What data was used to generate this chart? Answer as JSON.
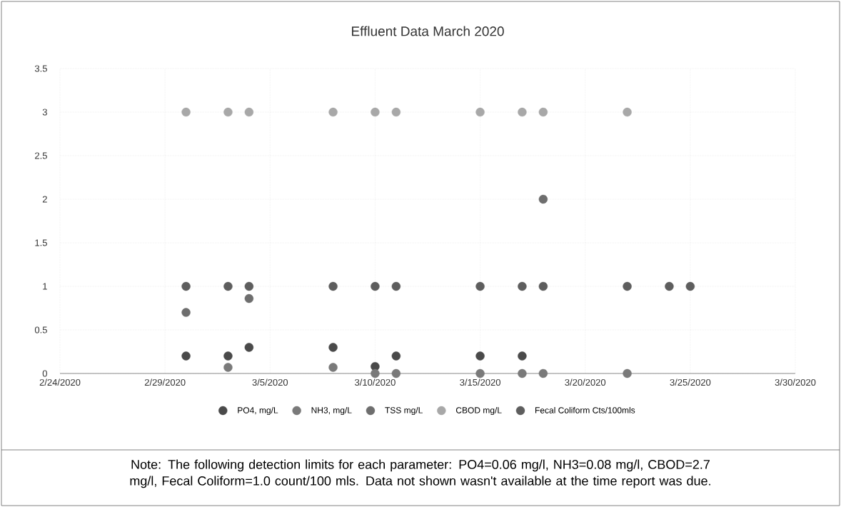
{
  "chart_data": {
    "type": "scatter",
    "title": "Effluent Data March 2020",
    "xlim": [
      "2020-02-24",
      "2020-03-30"
    ],
    "xticks": [
      {
        "value": "2020-02-24",
        "label": "2/24/2020"
      },
      {
        "value": "2020-02-29",
        "label": "2/29/2020"
      },
      {
        "value": "2020-03-05",
        "label": "3/5/2020"
      },
      {
        "value": "2020-03-10",
        "label": "3/10/2020"
      },
      {
        "value": "2020-03-15",
        "label": "3/15/2020"
      },
      {
        "value": "2020-03-20",
        "label": "3/20/2020"
      },
      {
        "value": "2020-03-25",
        "label": "3/25/2020"
      },
      {
        "value": "2020-03-30",
        "label": "3/30/2020"
      }
    ],
    "ylim": [
      0,
      3.5
    ],
    "yticks": [
      0,
      0.5,
      1,
      1.5,
      2,
      2.5,
      3,
      3.5
    ],
    "grid": true,
    "legend": "bottom",
    "marker": "circle",
    "series": [
      {
        "name": "PO4, mg/L",
        "color": "#4a4a4a",
        "x": [
          "2020-03-01",
          "2020-03-03",
          "2020-03-04",
          "2020-03-08",
          "2020-03-10",
          "2020-03-11",
          "2020-03-15",
          "2020-03-17"
        ],
        "values": [
          0.2,
          0.2,
          0.3,
          0.3,
          0.08,
          0.2,
          0.2,
          0.2
        ]
      },
      {
        "name": "NH3, mg/L",
        "color": "#7a7a7a",
        "x": [
          "2020-03-03",
          "2020-03-08",
          "2020-03-10",
          "2020-03-11",
          "2020-03-15",
          "2020-03-17",
          "2020-03-18",
          "2020-03-22"
        ],
        "values": [
          0.07,
          0.07,
          0,
          0,
          0,
          0,
          0,
          0
        ]
      },
      {
        "name": "TSS mg/L",
        "color": "#6e6e6e",
        "x": [
          "2020-03-01",
          "2020-03-04",
          "2020-03-18"
        ],
        "values": [
          0.7,
          0.86,
          2
        ]
      },
      {
        "name": "CBOD mg/L",
        "color": "#a8a8a8",
        "x": [
          "2020-03-01",
          "2020-03-03",
          "2020-03-04",
          "2020-03-08",
          "2020-03-10",
          "2020-03-11",
          "2020-03-15",
          "2020-03-17",
          "2020-03-18",
          "2020-03-22"
        ],
        "values": [
          3,
          3,
          3,
          3,
          3,
          3,
          3,
          3,
          3,
          3
        ]
      },
      {
        "name": "Fecal Coliform Cts/100mls",
        "color": "#5e5e5e",
        "x": [
          "2020-03-01",
          "2020-03-03",
          "2020-03-04",
          "2020-03-08",
          "2020-03-10",
          "2020-03-11",
          "2020-03-15",
          "2020-03-17",
          "2020-03-18",
          "2020-03-22",
          "2020-03-24",
          "2020-03-25"
        ],
        "values": [
          1,
          1,
          1,
          1,
          1,
          1,
          1,
          1,
          1,
          1,
          1,
          1
        ]
      }
    ],
    "annotations": [
      "Note: The following detection limits for each parameter: PO4=0.06 mg/l, NH3=0.08 mg/l, CBOD=2.7 mg/l, Fecal Coliform=1.0 count/100 mls.  Data not shown wasn't available at the time report was due."
    ]
  }
}
